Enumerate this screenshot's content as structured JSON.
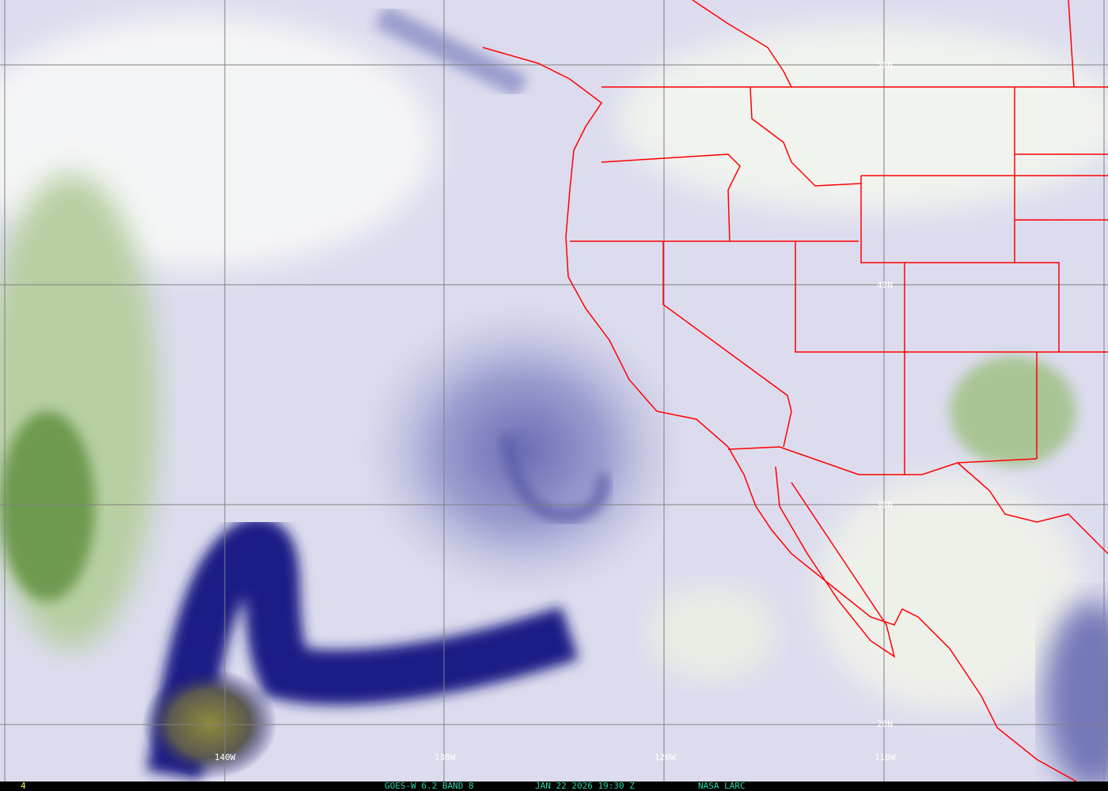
{
  "image": {
    "product": "GOES-W 6.2 BAND 8",
    "datetime": "JAN 22 2026 19:30 Z",
    "source": "NASA LARC",
    "frame_number": "4"
  },
  "grid": {
    "longitude_labels": [
      "140W",
      "130W",
      "120W",
      "110W"
    ],
    "latitude_labels": [
      "50N",
      "40N",
      "30N",
      "20N"
    ]
  },
  "colors": {
    "border_lines": "#ff0000",
    "grid_lines": "#808080",
    "status_text": "#29d6a8",
    "frame_text": "#ffff40",
    "dry_air": "#1c1c80",
    "moist_clouds": "#f2f4f0"
  }
}
